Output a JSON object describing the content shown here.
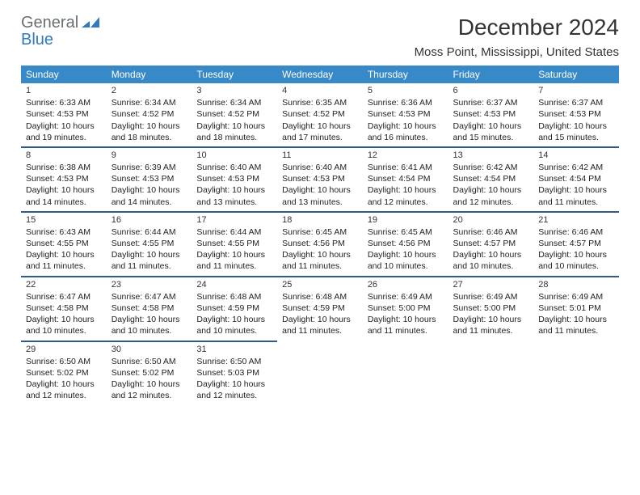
{
  "logo": {
    "word1": "General",
    "word2": "Blue"
  },
  "title": "December 2024",
  "location": "Moss Point, Mississippi, United States",
  "header_bg": "#3889c7",
  "divider_color": "#305c88",
  "logo_blue": "#2f7ac0",
  "days": [
    "Sunday",
    "Monday",
    "Tuesday",
    "Wednesday",
    "Thursday",
    "Friday",
    "Saturday"
  ],
  "weeks": [
    [
      {
        "n": "1",
        "sr": "Sunrise: 6:33 AM",
        "ss": "Sunset: 4:53 PM",
        "dl": "Daylight: 10 hours and 19 minutes."
      },
      {
        "n": "2",
        "sr": "Sunrise: 6:34 AM",
        "ss": "Sunset: 4:52 PM",
        "dl": "Daylight: 10 hours and 18 minutes."
      },
      {
        "n": "3",
        "sr": "Sunrise: 6:34 AM",
        "ss": "Sunset: 4:52 PM",
        "dl": "Daylight: 10 hours and 18 minutes."
      },
      {
        "n": "4",
        "sr": "Sunrise: 6:35 AM",
        "ss": "Sunset: 4:52 PM",
        "dl": "Daylight: 10 hours and 17 minutes."
      },
      {
        "n": "5",
        "sr": "Sunrise: 6:36 AM",
        "ss": "Sunset: 4:53 PM",
        "dl": "Daylight: 10 hours and 16 minutes."
      },
      {
        "n": "6",
        "sr": "Sunrise: 6:37 AM",
        "ss": "Sunset: 4:53 PM",
        "dl": "Daylight: 10 hours and 15 minutes."
      },
      {
        "n": "7",
        "sr": "Sunrise: 6:37 AM",
        "ss": "Sunset: 4:53 PM",
        "dl": "Daylight: 10 hours and 15 minutes."
      }
    ],
    [
      {
        "n": "8",
        "sr": "Sunrise: 6:38 AM",
        "ss": "Sunset: 4:53 PM",
        "dl": "Daylight: 10 hours and 14 minutes."
      },
      {
        "n": "9",
        "sr": "Sunrise: 6:39 AM",
        "ss": "Sunset: 4:53 PM",
        "dl": "Daylight: 10 hours and 14 minutes."
      },
      {
        "n": "10",
        "sr": "Sunrise: 6:40 AM",
        "ss": "Sunset: 4:53 PM",
        "dl": "Daylight: 10 hours and 13 minutes."
      },
      {
        "n": "11",
        "sr": "Sunrise: 6:40 AM",
        "ss": "Sunset: 4:53 PM",
        "dl": "Daylight: 10 hours and 13 minutes."
      },
      {
        "n": "12",
        "sr": "Sunrise: 6:41 AM",
        "ss": "Sunset: 4:54 PM",
        "dl": "Daylight: 10 hours and 12 minutes."
      },
      {
        "n": "13",
        "sr": "Sunrise: 6:42 AM",
        "ss": "Sunset: 4:54 PM",
        "dl": "Daylight: 10 hours and 12 minutes."
      },
      {
        "n": "14",
        "sr": "Sunrise: 6:42 AM",
        "ss": "Sunset: 4:54 PM",
        "dl": "Daylight: 10 hours and 11 minutes."
      }
    ],
    [
      {
        "n": "15",
        "sr": "Sunrise: 6:43 AM",
        "ss": "Sunset: 4:55 PM",
        "dl": "Daylight: 10 hours and 11 minutes."
      },
      {
        "n": "16",
        "sr": "Sunrise: 6:44 AM",
        "ss": "Sunset: 4:55 PM",
        "dl": "Daylight: 10 hours and 11 minutes."
      },
      {
        "n": "17",
        "sr": "Sunrise: 6:44 AM",
        "ss": "Sunset: 4:55 PM",
        "dl": "Daylight: 10 hours and 11 minutes."
      },
      {
        "n": "18",
        "sr": "Sunrise: 6:45 AM",
        "ss": "Sunset: 4:56 PM",
        "dl": "Daylight: 10 hours and 11 minutes."
      },
      {
        "n": "19",
        "sr": "Sunrise: 6:45 AM",
        "ss": "Sunset: 4:56 PM",
        "dl": "Daylight: 10 hours and 10 minutes."
      },
      {
        "n": "20",
        "sr": "Sunrise: 6:46 AM",
        "ss": "Sunset: 4:57 PM",
        "dl": "Daylight: 10 hours and 10 minutes."
      },
      {
        "n": "21",
        "sr": "Sunrise: 6:46 AM",
        "ss": "Sunset: 4:57 PM",
        "dl": "Daylight: 10 hours and 10 minutes."
      }
    ],
    [
      {
        "n": "22",
        "sr": "Sunrise: 6:47 AM",
        "ss": "Sunset: 4:58 PM",
        "dl": "Daylight: 10 hours and 10 minutes."
      },
      {
        "n": "23",
        "sr": "Sunrise: 6:47 AM",
        "ss": "Sunset: 4:58 PM",
        "dl": "Daylight: 10 hours and 10 minutes."
      },
      {
        "n": "24",
        "sr": "Sunrise: 6:48 AM",
        "ss": "Sunset: 4:59 PM",
        "dl": "Daylight: 10 hours and 10 minutes."
      },
      {
        "n": "25",
        "sr": "Sunrise: 6:48 AM",
        "ss": "Sunset: 4:59 PM",
        "dl": "Daylight: 10 hours and 11 minutes."
      },
      {
        "n": "26",
        "sr": "Sunrise: 6:49 AM",
        "ss": "Sunset: 5:00 PM",
        "dl": "Daylight: 10 hours and 11 minutes."
      },
      {
        "n": "27",
        "sr": "Sunrise: 6:49 AM",
        "ss": "Sunset: 5:00 PM",
        "dl": "Daylight: 10 hours and 11 minutes."
      },
      {
        "n": "28",
        "sr": "Sunrise: 6:49 AM",
        "ss": "Sunset: 5:01 PM",
        "dl": "Daylight: 10 hours and 11 minutes."
      }
    ],
    [
      {
        "n": "29",
        "sr": "Sunrise: 6:50 AM",
        "ss": "Sunset: 5:02 PM",
        "dl": "Daylight: 10 hours and 12 minutes."
      },
      {
        "n": "30",
        "sr": "Sunrise: 6:50 AM",
        "ss": "Sunset: 5:02 PM",
        "dl": "Daylight: 10 hours and 12 minutes."
      },
      {
        "n": "31",
        "sr": "Sunrise: 6:50 AM",
        "ss": "Sunset: 5:03 PM",
        "dl": "Daylight: 10 hours and 12 minutes."
      },
      null,
      null,
      null,
      null
    ]
  ]
}
